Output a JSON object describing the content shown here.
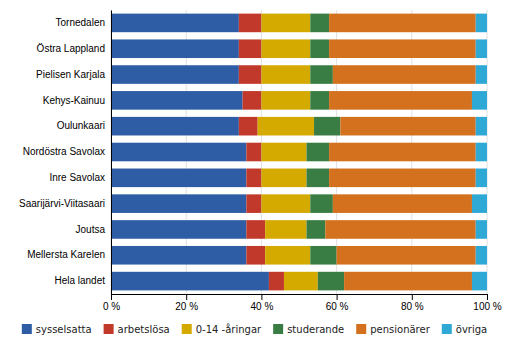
{
  "chart_data": {
    "type": "bar",
    "orientation": "horizontal",
    "stacked": true,
    "grid": true,
    "legend": "bottom",
    "categories": [
      "Tornedalen",
      "Östra Lappland",
      "Pielisen Karjala",
      "Kehys-Kainuu",
      "Oulunkaari",
      "Nordöstra Savolax",
      "Inre Savolax",
      "Saarijärvi-Viitasaari",
      "Joutsa",
      "Mellersta Karelen",
      "Hela landet"
    ],
    "series": [
      {
        "name": "sysselsatta",
        "color": "#2E5DA6",
        "values": [
          34,
          34,
          34,
          35,
          34,
          36,
          36,
          36,
          36,
          36,
          42
        ]
      },
      {
        "name": "arbetslösa",
        "color": "#C0392B",
        "values": [
          6,
          6,
          6,
          5,
          5,
          4,
          4,
          4,
          5,
          5,
          4
        ]
      },
      {
        "name": "0-14 -åringar",
        "color": "#D4AA00",
        "values": [
          13,
          13,
          13,
          13,
          15,
          12,
          12,
          13,
          11,
          12,
          9
        ]
      },
      {
        "name": "studerande",
        "color": "#3A7D44",
        "values": [
          5,
          5,
          6,
          5,
          7,
          6,
          6,
          6,
          5,
          7,
          7
        ]
      },
      {
        "name": "pensionärer",
        "color": "#D4711F",
        "values": [
          39,
          39,
          38,
          38,
          36,
          39,
          39,
          37,
          40,
          37,
          34
        ]
      },
      {
        "name": "övriga",
        "color": "#2EA8D5",
        "values": [
          3,
          3,
          3,
          4,
          3,
          3,
          3,
          4,
          3,
          3,
          4
        ]
      }
    ],
    "xlim": [
      0,
      100
    ],
    "xticks": [
      {
        "value": 0,
        "label": "0 %"
      },
      {
        "value": 20,
        "label": "20 %"
      },
      {
        "value": 40,
        "label": "40 %"
      },
      {
        "value": 60,
        "label": "60 %"
      },
      {
        "value": 80,
        "label": "80 %"
      },
      {
        "value": 100,
        "label": "100 %"
      }
    ]
  }
}
